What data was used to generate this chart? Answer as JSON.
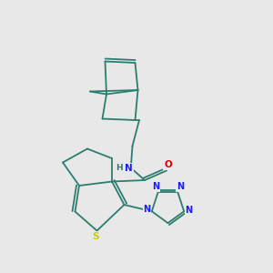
{
  "background_color": "#e8e8e8",
  "bond_color": "#2d7d6e",
  "bond_width": 1.3,
  "atom_colors": {
    "N": "#1a1aff",
    "O": "#dd0000",
    "S": "#cccc00",
    "H": "#2d7d6e",
    "C": "#2d7d6e"
  },
  "figsize": [
    3.0,
    3.0
  ],
  "dpi": 100
}
